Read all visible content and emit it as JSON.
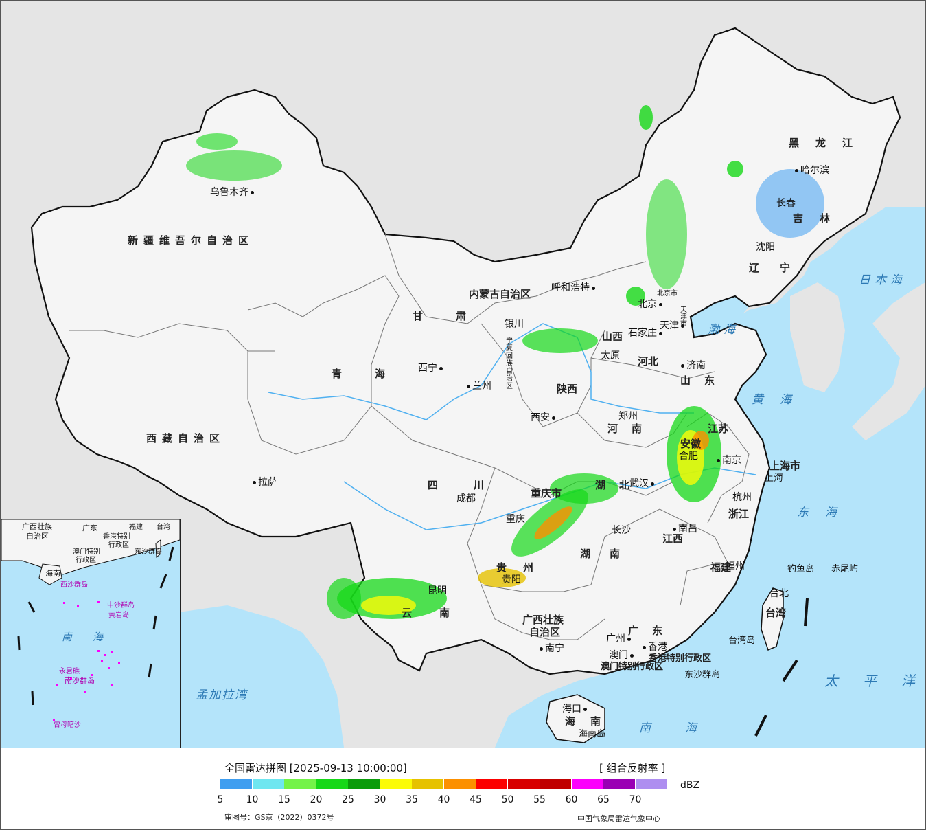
{
  "map": {
    "provinces": [
      {
        "name": "新疆维吾尔自治区"
      },
      {
        "name": "西藏自治区"
      },
      {
        "name": "青海"
      },
      {
        "name": "甘肃"
      },
      {
        "name": "内蒙古自治区"
      },
      {
        "name": "黑龙江"
      },
      {
        "name": "吉林"
      },
      {
        "name": "辽宁"
      },
      {
        "name": "河北"
      },
      {
        "name": "山西"
      },
      {
        "name": "陕西"
      },
      {
        "name": "河南"
      },
      {
        "name": "山东"
      },
      {
        "name": "江苏"
      },
      {
        "name": "安徽"
      },
      {
        "name": "湖北"
      },
      {
        "name": "四川"
      },
      {
        "name": "重庆市"
      },
      {
        "name": "贵州"
      },
      {
        "name": "云南"
      },
      {
        "name": "湖南"
      },
      {
        "name": "江西"
      },
      {
        "name": "浙江"
      },
      {
        "name": "福建"
      },
      {
        "name": "广东"
      },
      {
        "name": "广西壮族"
      },
      {
        "name": "自治区"
      },
      {
        "name": "海南"
      },
      {
        "name": "台湾"
      },
      {
        "name": "上海市"
      },
      {
        "name": "宁夏回族自治区"
      },
      {
        "name": "香港特别行政区"
      },
      {
        "name": "澳门特别行政区"
      }
    ],
    "cities": [
      {
        "name": "乌鲁木齐"
      },
      {
        "name": "拉萨"
      },
      {
        "name": "西宁"
      },
      {
        "name": "兰州"
      },
      {
        "name": "银川"
      },
      {
        "name": "呼和浩特"
      },
      {
        "name": "北京"
      },
      {
        "name": "北京市"
      },
      {
        "name": "天津"
      },
      {
        "name": "天津市"
      },
      {
        "name": "石家庄"
      },
      {
        "name": "太原"
      },
      {
        "name": "济南"
      },
      {
        "name": "郑州"
      },
      {
        "name": "西安"
      },
      {
        "name": "成都"
      },
      {
        "name": "重庆"
      },
      {
        "name": "贵阳"
      },
      {
        "name": "昆明"
      },
      {
        "name": "南宁"
      },
      {
        "name": "广州"
      },
      {
        "name": "澳门"
      },
      {
        "name": "香港"
      },
      {
        "name": "海口"
      },
      {
        "name": "长沙"
      },
      {
        "name": "武汉"
      },
      {
        "name": "南昌"
      },
      {
        "name": "合肥"
      },
      {
        "name": "南京"
      },
      {
        "name": "上海"
      },
      {
        "name": "杭州"
      },
      {
        "name": "福州"
      },
      {
        "name": "台北"
      },
      {
        "name": "沈阳"
      },
      {
        "name": "长春"
      },
      {
        "name": "哈尔滨"
      }
    ],
    "seas": [
      {
        "name": "日本海"
      },
      {
        "name": "渤海"
      },
      {
        "name": "黄海"
      },
      {
        "name": "东海"
      },
      {
        "name": "太平洋"
      },
      {
        "name": "南海"
      },
      {
        "name": "孟加拉湾"
      }
    ],
    "islands": [
      {
        "name": "钓鱼岛"
      },
      {
        "name": "赤尾屿"
      },
      {
        "name": "台湾岛"
      },
      {
        "name": "东沙群岛"
      },
      {
        "name": "海南岛"
      }
    ],
    "inset": {
      "labels": [
        "广西壮族",
        "自治区",
        "广东",
        "福建",
        "台湾",
        "香港特别",
        "行政区",
        "澳门特别",
        "行政区",
        "东沙群岛",
        "海南",
        "西沙群岛",
        "中沙群岛",
        "黄岩岛",
        "南海",
        "永暑礁",
        "南沙群岛",
        "曾母暗沙"
      ]
    }
  },
  "legend": {
    "title": "全国雷达拼图 [2025-09-13 10:00:00]",
    "product": "[ 组合反射率 ]",
    "unit": "dBZ",
    "ticks": [
      "5",
      "10",
      "15",
      "20",
      "25",
      "30",
      "35",
      "40",
      "45",
      "50",
      "55",
      "60",
      "65",
      "70"
    ],
    "colors": [
      "#3f9ef0",
      "#6ee6f0",
      "#74f348",
      "#16d818",
      "#0a9c0a",
      "#fbfb06",
      "#e6c200",
      "#fc9000",
      "#fc0000",
      "#d80000",
      "#c00000",
      "#fc00fc",
      "#9a00b4",
      "#ae8ef0"
    ],
    "map_approval": "审图号：GS京（2022）0372号",
    "source": "中国气象局雷达气象中心"
  }
}
